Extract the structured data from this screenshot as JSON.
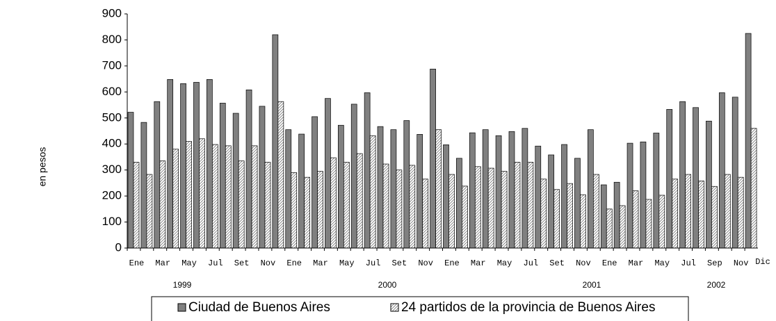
{
  "chart_data": {
    "type": "bar",
    "y_label": "en pesos",
    "categories": [
      "Ene",
      null,
      "Mar",
      null,
      "May",
      null,
      "Jul",
      null,
      "Set",
      null,
      "Nov",
      null,
      "Ene",
      null,
      "Mar",
      null,
      "May",
      null,
      "Jul",
      null,
      "Set",
      null,
      "Nov",
      null,
      "Ene",
      null,
      "Mar",
      null,
      "May",
      null,
      "Jul",
      null,
      "Set",
      null,
      "Nov",
      null,
      "Ene",
      null,
      "Mar",
      null,
      "May",
      null,
      "Jul",
      null,
      "Sep",
      null,
      "Nov",
      "Dic"
    ],
    "year_labels": [
      "1999",
      "2000",
      "2001",
      "2002"
    ],
    "series": [
      {
        "name": "Ciudad de Buenos Aires",
        "color": "#808080",
        "values": [
          522,
          483,
          563,
          648,
          632,
          637,
          648,
          557,
          518,
          608,
          545,
          820,
          455,
          438,
          505,
          575,
          472,
          553,
          597,
          467,
          455,
          490,
          437,
          688,
          397,
          345,
          443,
          455,
          432,
          448,
          460,
          392,
          358,
          398,
          345,
          455,
          243,
          253,
          403,
          408,
          442,
          533,
          563,
          540,
          488,
          597,
          580,
          825
        ]
      },
      {
        "name": "24 partidos de la provincia de Buenos Aires",
        "color": "#ffffff",
        "values": [
          330,
          283,
          335,
          380,
          410,
          420,
          398,
          393,
          335,
          393,
          330,
          563,
          290,
          272,
          295,
          347,
          330,
          363,
          432,
          323,
          300,
          318,
          265,
          455,
          283,
          238,
          313,
          307,
          295,
          330,
          330,
          265,
          225,
          248,
          205,
          283,
          150,
          163,
          220,
          187,
          203,
          265,
          283,
          258,
          237,
          283,
          272,
          460
        ]
      }
    ],
    "ylim": [
      0,
      900
    ],
    "yticks": [
      0,
      100,
      200,
      300,
      400,
      500,
      600,
      700,
      800,
      900
    ],
    "grid": false
  }
}
